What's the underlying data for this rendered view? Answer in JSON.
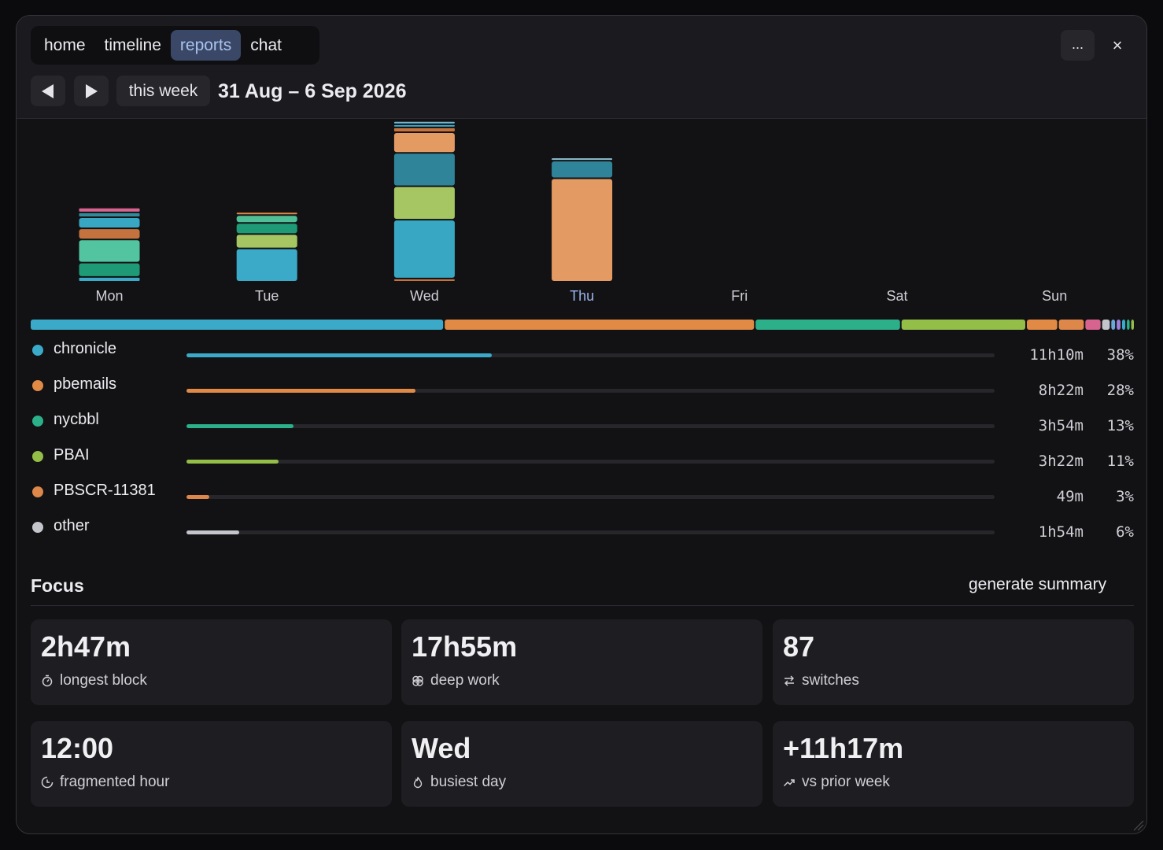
{
  "tabs": [
    {
      "label": "home",
      "active": false
    },
    {
      "label": "timeline",
      "active": false
    },
    {
      "label": "reports",
      "active": true
    },
    {
      "label": "chat",
      "active": false
    }
  ],
  "window_actions": {
    "more_label": "...",
    "close_label": "×"
  },
  "week_nav": {
    "prev_icon": "triangle-left-icon",
    "next_icon": "triangle-right-icon",
    "this_week_label": "this week",
    "date_range": "31 Aug – 6 Sep 2026"
  },
  "colors": {
    "chronicle": "#3aaac8",
    "pbemails": "#e08a46",
    "nycbbl": "#2bb08a",
    "pbai": "#93be47",
    "pbscr": "#dd874a",
    "other": "#c4c4cb",
    "active_tab_text": "#a9c3f0",
    "today_label": "#9ab6ec"
  },
  "chart_data": {
    "type": "bar",
    "stacked": true,
    "unit": "hours",
    "categories": [
      "Mon",
      "Tue",
      "Wed",
      "Thu",
      "Fri",
      "Sat",
      "Sun"
    ],
    "highlighted_category": "Thu",
    "day_segments": [
      [
        {
          "color": "#3aaac8",
          "value": 0.14
        },
        {
          "color": "#1f9a76",
          "value": 0.55
        },
        {
          "color": "#52c4a0",
          "value": 0.93
        },
        {
          "color": "#c4733e",
          "value": 0.41
        },
        {
          "color": "#38a7c4",
          "value": 0.41
        },
        {
          "color": "#2f8a9a",
          "value": 0.14
        },
        {
          "color": "#d7648e",
          "value": 0.14
        }
      ],
      [
        {
          "color": "#3aaac8",
          "value": 1.37
        },
        {
          "color": "#a6c664",
          "value": 0.55
        },
        {
          "color": "#1f9a76",
          "value": 0.41
        },
        {
          "color": "#4fbf97",
          "value": 0.27
        },
        {
          "color": "#e08a46",
          "value": 0.07
        }
      ],
      [
        {
          "color": "#c4733e",
          "value": 0.07
        },
        {
          "color": "#38a7c4",
          "value": 2.47
        },
        {
          "color": "#a6c664",
          "value": 1.37
        },
        {
          "color": "#2f8499",
          "value": 1.37
        },
        {
          "color": "#e49a63",
          "value": 0.82
        },
        {
          "color": "#c4733e",
          "value": 0.14
        },
        {
          "color": "#3aaac8",
          "value": 0.07
        },
        {
          "color": "#6fb7d0",
          "value": 0.07
        }
      ],
      [
        {
          "color": "#e49a63",
          "value": 4.39
        },
        {
          "color": "#2f8499",
          "value": 0.69
        },
        {
          "color": "#8fc0d0",
          "value": 0.07
        }
      ],
      [],
      [],
      []
    ]
  },
  "overall_segments": [
    {
      "color": "#3aaac8",
      "pct": 38
    },
    {
      "color": "#e08a46",
      "pct": 28.5
    },
    {
      "color": "#2bb08a",
      "pct": 13.3
    },
    {
      "color": "#93be47",
      "pct": 11.4
    },
    {
      "color": "#e08a46",
      "pct": 2.8
    },
    {
      "color": "#dd874a",
      "pct": 2.3
    },
    {
      "color": "#d7648e",
      "pct": 1.4
    },
    {
      "color": "#c4c4cb",
      "pct": 0.7
    },
    {
      "color": "#6aa7d8",
      "pct": 0.35
    },
    {
      "color": "#9b7fd8",
      "pct": 0.35
    },
    {
      "color": "#3aaac8",
      "pct": 0.3
    },
    {
      "color": "#2bb08a",
      "pct": 0.25
    },
    {
      "color": "#93be47",
      "pct": 0.25
    }
  ],
  "categories": [
    {
      "name": "chronicle",
      "duration": "11h10m",
      "pct_label": "38%",
      "fraction": 0.378,
      "color": "#3aaac8"
    },
    {
      "name": "pbemails",
      "duration": "8h22m",
      "pct_label": "28%",
      "fraction": 0.283,
      "color": "#e08a46"
    },
    {
      "name": "nycbbl",
      "duration": "3h54m",
      "pct_label": "13%",
      "fraction": 0.132,
      "color": "#2bb08a"
    },
    {
      "name": "PBAI",
      "duration": "3h22m",
      "pct_label": "11%",
      "fraction": 0.114,
      "color": "#93be47"
    },
    {
      "name": "PBSCR-11381",
      "duration": "49m",
      "pct_label": "3%",
      "fraction": 0.028,
      "color": "#dd874a"
    },
    {
      "name": "other",
      "duration": "1h54m",
      "pct_label": "6%",
      "fraction": 0.065,
      "color": "#c4c4cb"
    }
  ],
  "focus": {
    "title": "Focus",
    "generate_label": "generate summary",
    "cards": [
      {
        "value": "2h47m",
        "label": "longest block",
        "icon": "stopwatch-icon"
      },
      {
        "value": "17h55m",
        "label": "deep work",
        "icon": "brain-icon"
      },
      {
        "value": "87",
        "label": "switches",
        "icon": "arrows-swap-icon"
      },
      {
        "value": "12:00",
        "label": "fragmented hour",
        "icon": "clock-partial-icon"
      },
      {
        "value": "Wed",
        "label": "busiest day",
        "icon": "flame-icon"
      },
      {
        "value": "+11h17m",
        "label": "vs prior week",
        "icon": "trend-up-icon"
      }
    ]
  }
}
